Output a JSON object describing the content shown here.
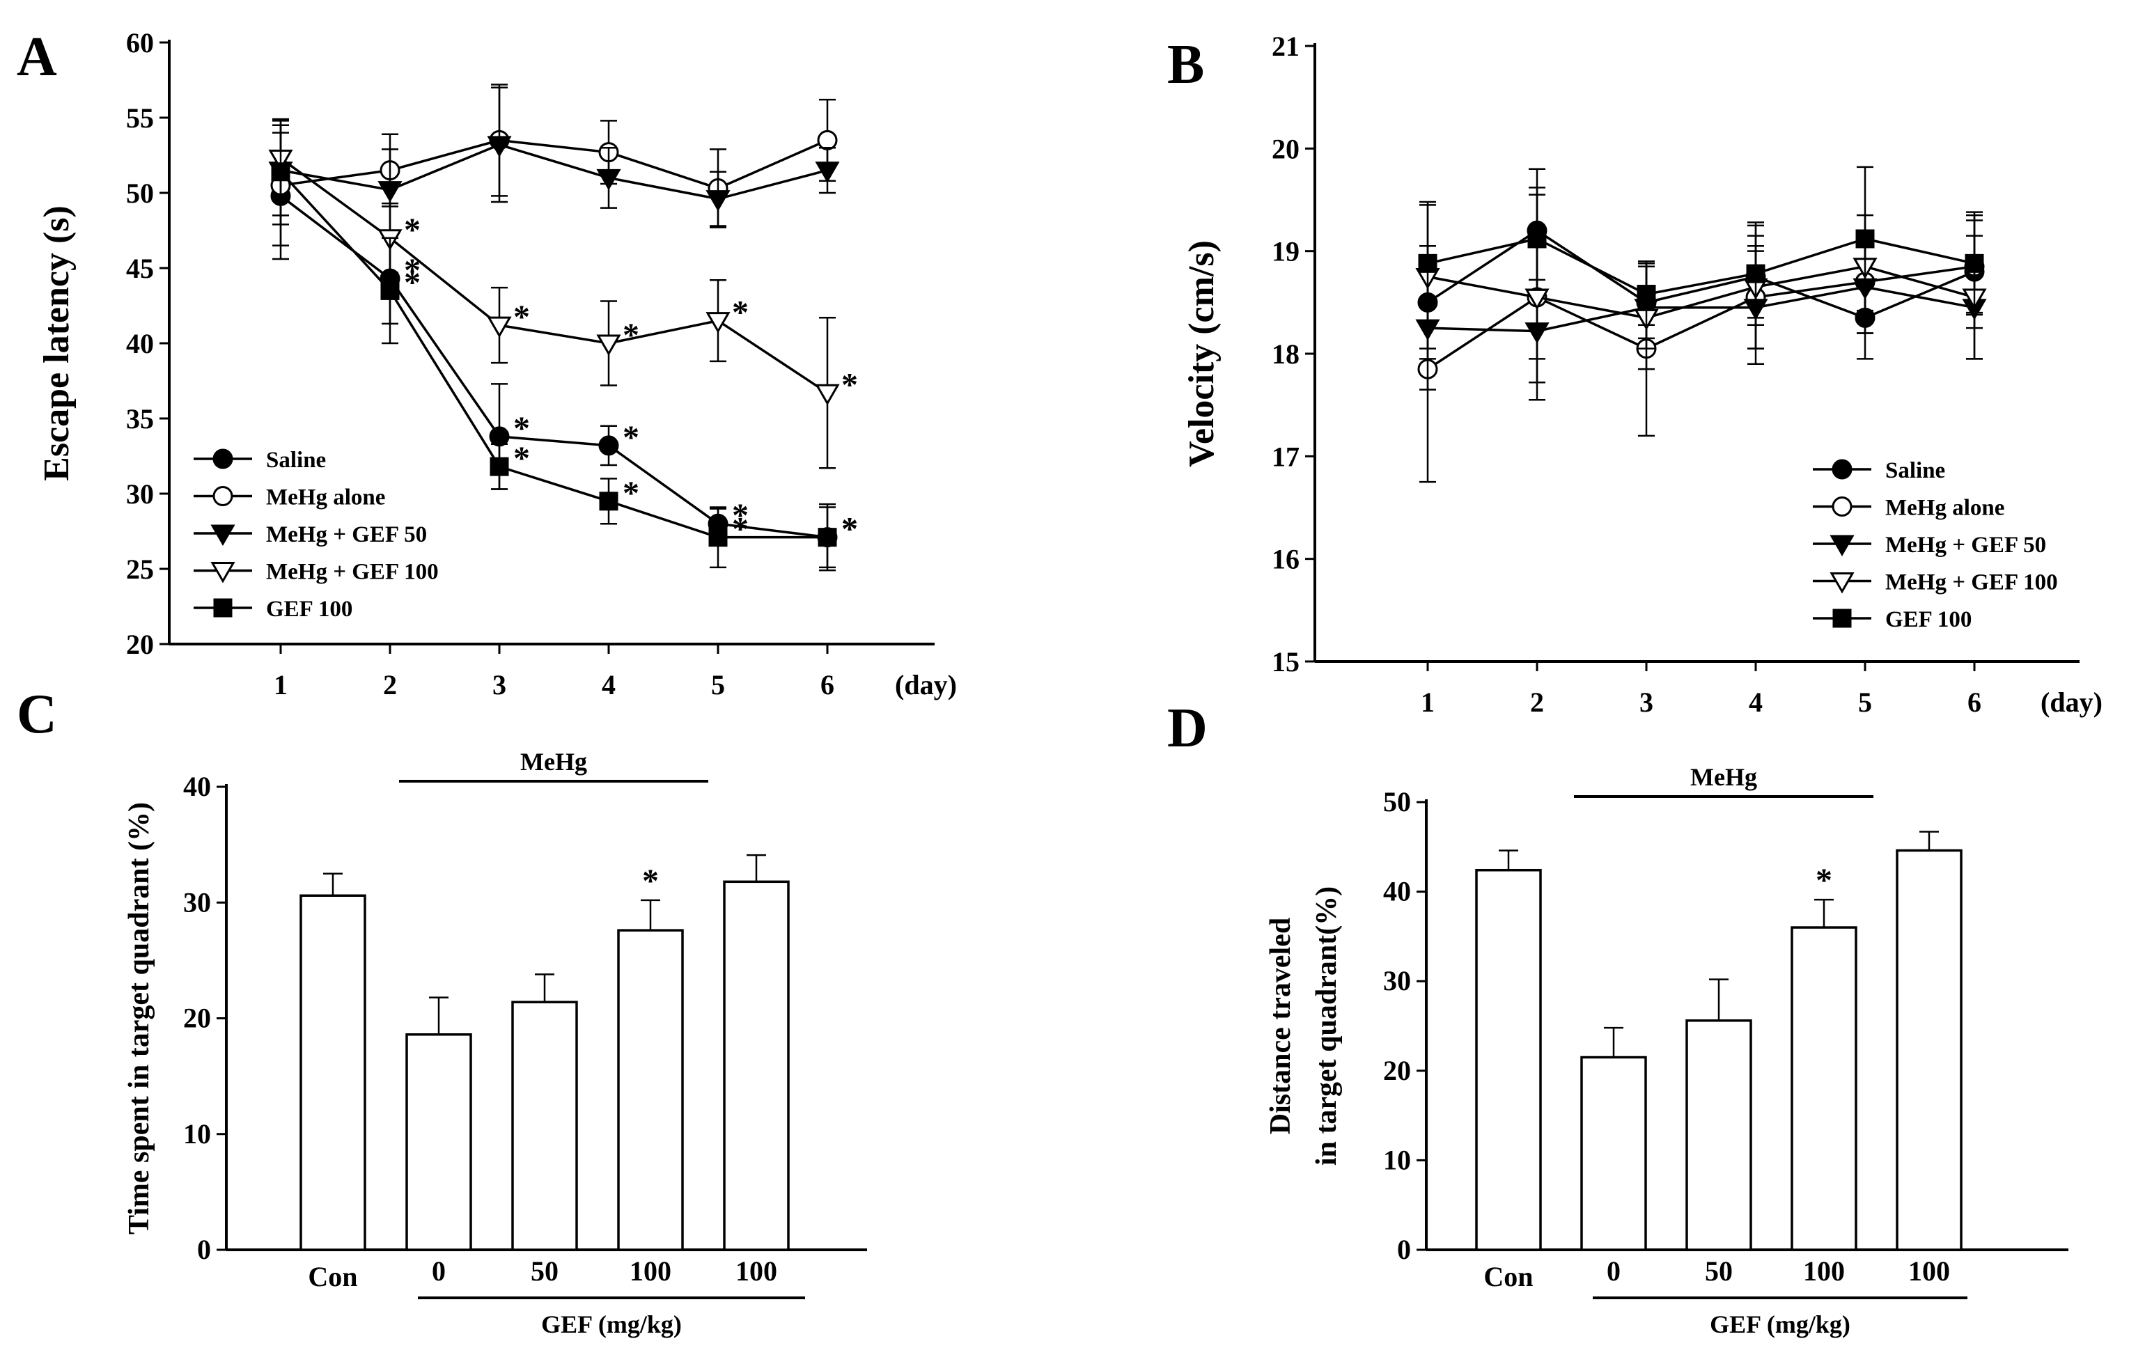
{
  "chart_data": [
    {
      "panel": "A",
      "type": "line",
      "ylabel": "Escape latency (s)",
      "xunit": "(day)",
      "x": [
        1,
        2,
        3,
        4,
        5,
        6
      ],
      "ylim": [
        20,
        60
      ],
      "yticks": [
        20,
        25,
        30,
        35,
        40,
        45,
        50,
        55,
        60
      ],
      "legend_position": "bottom-left",
      "series": [
        {
          "name": "Saline",
          "marker": "circle-filled",
          "values": [
            49.8,
            44.3,
            33.8,
            33.2,
            28.0,
            27.1
          ],
          "errors": [
            4.2,
            3.0,
            3.5,
            1.3,
            1.0,
            2.2
          ],
          "stars": [
            false,
            true,
            true,
            true,
            true,
            true
          ]
        },
        {
          "name": "MeHg alone",
          "marker": "circle-open",
          "values": [
            50.5,
            51.5,
            53.5,
            52.7,
            50.3,
            53.5
          ],
          "errors": [
            4.0,
            2.4,
            3.7,
            2.1,
            2.6,
            2.7
          ],
          "stars": [
            false,
            false,
            false,
            false,
            false,
            false
          ]
        },
        {
          "name": "MeHg + GEF 50",
          "marker": "triangle-down-filled",
          "values": [
            51.5,
            50.2,
            53.2,
            51.0,
            49.6,
            51.5
          ],
          "errors": [
            3.0,
            2.7,
            3.8,
            2.0,
            1.8,
            1.5
          ],
          "stars": [
            false,
            false,
            false,
            false,
            false,
            false
          ]
        },
        {
          "name": "MeHg + GEF 100",
          "marker": "triangle-down-open",
          "values": [
            52.3,
            47.0,
            41.2,
            40.0,
            41.5,
            36.7
          ],
          "errors": [
            2.5,
            2.3,
            2.5,
            2.8,
            2.7,
            5.0
          ],
          "stars": [
            false,
            true,
            true,
            true,
            true,
            true
          ]
        },
        {
          "name": "GEF 100",
          "marker": "square-filled",
          "values": [
            51.4,
            43.5,
            31.8,
            29.5,
            27.1,
            27.1
          ],
          "errors": [
            3.5,
            3.5,
            1.5,
            1.5,
            2.0,
            2.0
          ],
          "stars": [
            false,
            true,
            true,
            true,
            true,
            true
          ]
        }
      ]
    },
    {
      "panel": "B",
      "type": "line",
      "ylabel": "Velocity (cm/s)",
      "xunit": "(day)",
      "x": [
        1,
        2,
        3,
        4,
        5,
        6
      ],
      "ylim": [
        15,
        21
      ],
      "yticks": [
        15,
        16,
        17,
        18,
        19,
        20,
        21
      ],
      "legend_position": "bottom-right",
      "series": [
        {
          "name": "Saline",
          "marker": "circle-filled",
          "values": [
            18.5,
            19.2,
            18.5,
            18.75,
            18.35,
            18.8
          ],
          "errors": [
            0.55,
            0.6,
            0.35,
            0.4,
            0.4,
            0.55
          ]
        },
        {
          "name": "MeHg alone",
          "marker": "circle-open",
          "values": [
            17.85,
            18.55,
            18.05,
            18.55,
            18.7,
            18.85
          ],
          "errors": [
            1.1,
            1.0,
            0.85,
            0.5,
            0.5,
            0.45
          ]
        },
        {
          "name": "MeHg + GEF 50",
          "marker": "triangle-down-filled",
          "values": [
            18.25,
            18.22,
            18.45,
            18.45,
            18.65,
            18.45
          ],
          "errors": [
            0.6,
            0.5,
            0.4,
            0.55,
            0.45,
            0.5
          ]
        },
        {
          "name": "MeHg + GEF 100",
          "marker": "triangle-down-open",
          "values": [
            18.75,
            18.55,
            18.35,
            18.65,
            18.85,
            18.55
          ],
          "errors": [
            0.7,
            0.6,
            0.5,
            0.6,
            0.5,
            0.6
          ]
        },
        {
          "name": "GEF 100",
          "marker": "square-filled",
          "values": [
            18.88,
            19.12,
            18.58,
            18.78,
            19.12,
            18.88
          ],
          "errors": [
            0.6,
            0.5,
            0.3,
            0.5,
            0.7,
            0.5
          ]
        }
      ]
    },
    {
      "panel": "C",
      "type": "bar",
      "ylabel": "Time spent in target quadrant (%)",
      "categories": [
        "Con",
        "0",
        "50",
        "100",
        "100"
      ],
      "values": [
        30.6,
        18.6,
        21.4,
        27.6,
        31.8
      ],
      "errors": [
        1.9,
        3.2,
        2.4,
        2.6,
        2.3
      ],
      "stars": [
        false,
        false,
        false,
        true,
        false
      ],
      "ylim": [
        0,
        40
      ],
      "yticks": [
        0,
        10,
        20,
        30,
        40
      ],
      "group_top_label": "MeHg",
      "group_bottom_label": "GEF (mg/kg)"
    },
    {
      "panel": "D",
      "type": "bar",
      "ylabel_lines": [
        "Distance traveled",
        "in target quadrant(%)"
      ],
      "categories": [
        "Con",
        "0",
        "50",
        "100",
        "100"
      ],
      "values": [
        42.4,
        21.5,
        25.6,
        36.0,
        44.6
      ],
      "errors": [
        2.2,
        3.3,
        4.6,
        3.1,
        2.1
      ],
      "stars": [
        false,
        false,
        false,
        true,
        false
      ],
      "ylim": [
        0,
        50
      ],
      "yticks": [
        0,
        10,
        20,
        30,
        40,
        50
      ],
      "group_top_label": "MeHg",
      "group_bottom_label": "GEF (mg/kg)"
    }
  ]
}
